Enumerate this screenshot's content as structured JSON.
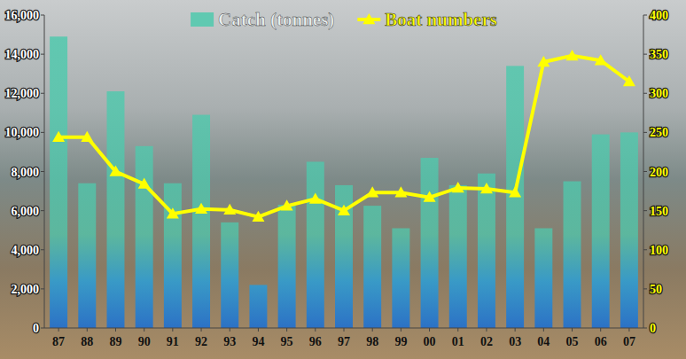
{
  "chart_data": {
    "type": "bar",
    "categories": [
      "87",
      "88",
      "89",
      "90",
      "91",
      "92",
      "93",
      "94",
      "95",
      "96",
      "97",
      "98",
      "99",
      "00",
      "01",
      "02",
      "03",
      "04",
      "05",
      "06",
      "07"
    ],
    "series": [
      {
        "name": "Catch (tonnes)",
        "type": "bar",
        "color": "#4fc9ad",
        "values": [
          14900,
          7400,
          12100,
          9300,
          7400,
          10900,
          5400,
          2200,
          6300,
          8500,
          7300,
          6250,
          5100,
          8700,
          7300,
          7900,
          13400,
          5100,
          7500,
          9900,
          10000
        ]
      },
      {
        "name": "Boat numbers",
        "type": "line",
        "axis": "y2",
        "color": "#ffff00",
        "marker": "triangle",
        "line_style": "solid",
        "values": [
          244,
          244,
          200,
          184,
          146,
          152,
          151,
          142,
          156,
          165,
          150,
          173,
          173,
          167,
          179,
          178,
          173,
          340,
          348,
          342,
          315
        ]
      }
    ],
    "ylim": [
      0,
      16000
    ],
    "yticks": [
      0,
      {
        "value": 2000,
        "label": "2,000"
      },
      {
        "value": 4000,
        "label": "4,000"
      },
      {
        "value": 6000,
        "label": "6,000"
      },
      {
        "value": 8000,
        "label": "8,000"
      },
      {
        "value": 10000,
        "label": "10,000"
      },
      {
        "value": 12000,
        "label": "12,000"
      },
      {
        "value": 14000,
        "label": "14,000"
      },
      {
        "value": 16000,
        "label": "16,000"
      }
    ],
    "y2lim": [
      0,
      400
    ],
    "y2ticks": [
      0,
      50,
      100,
      150,
      200,
      250,
      300,
      350,
      400
    ],
    "legend": "top",
    "grid": false
  }
}
